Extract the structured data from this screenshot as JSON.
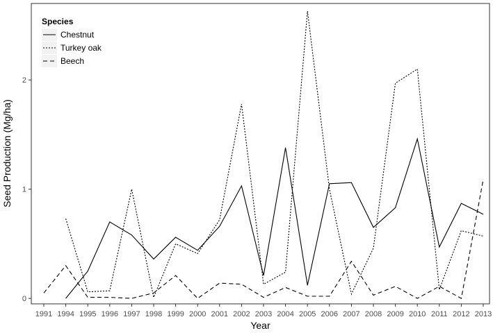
{
  "chart_data": {
    "type": "line",
    "title": "",
    "xlabel": "Year",
    "ylabel": "Seed Production (Mg/ha)",
    "ylim": [
      -0.05,
      2.7
    ],
    "yticks": [
      0,
      1,
      2
    ],
    "grid": false,
    "categories": [
      "1991",
      "1994",
      "1995",
      "1996",
      "1997",
      "1998",
      "1999",
      "2000",
      "2001",
      "2002",
      "2003",
      "2004",
      "2005",
      "2006",
      "2007",
      "2008",
      "2009",
      "2010",
      "2011",
      "2012",
      "2013"
    ],
    "legend": {
      "title": "Species",
      "placement": "top-left"
    },
    "series": [
      {
        "name": "Chestnut",
        "dash": "solid",
        "values": [
          null,
          0.0,
          0.25,
          0.7,
          0.58,
          0.36,
          0.56,
          0.44,
          0.66,
          1.03,
          0.21,
          1.38,
          0.12,
          1.05,
          1.06,
          0.65,
          0.83,
          1.46,
          0.47,
          0.87,
          0.77
        ]
      },
      {
        "name": "Turkey oak",
        "dash": "dotted",
        "values": [
          null,
          0.73,
          0.06,
          0.07,
          1.0,
          0.01,
          0.5,
          0.41,
          0.72,
          1.78,
          0.13,
          0.24,
          2.63,
          1.0,
          0.04,
          0.46,
          1.97,
          2.1,
          0.08,
          0.62,
          0.57
        ]
      },
      {
        "name": "Beech",
        "dash": "dashed",
        "values": [
          0.05,
          0.3,
          0.01,
          0.01,
          0.0,
          0.05,
          0.21,
          0.0,
          0.14,
          0.13,
          0.01,
          0.1,
          0.02,
          0.02,
          0.34,
          0.03,
          0.11,
          0.0,
          0.11,
          0.0,
          1.09
        ]
      }
    ]
  }
}
